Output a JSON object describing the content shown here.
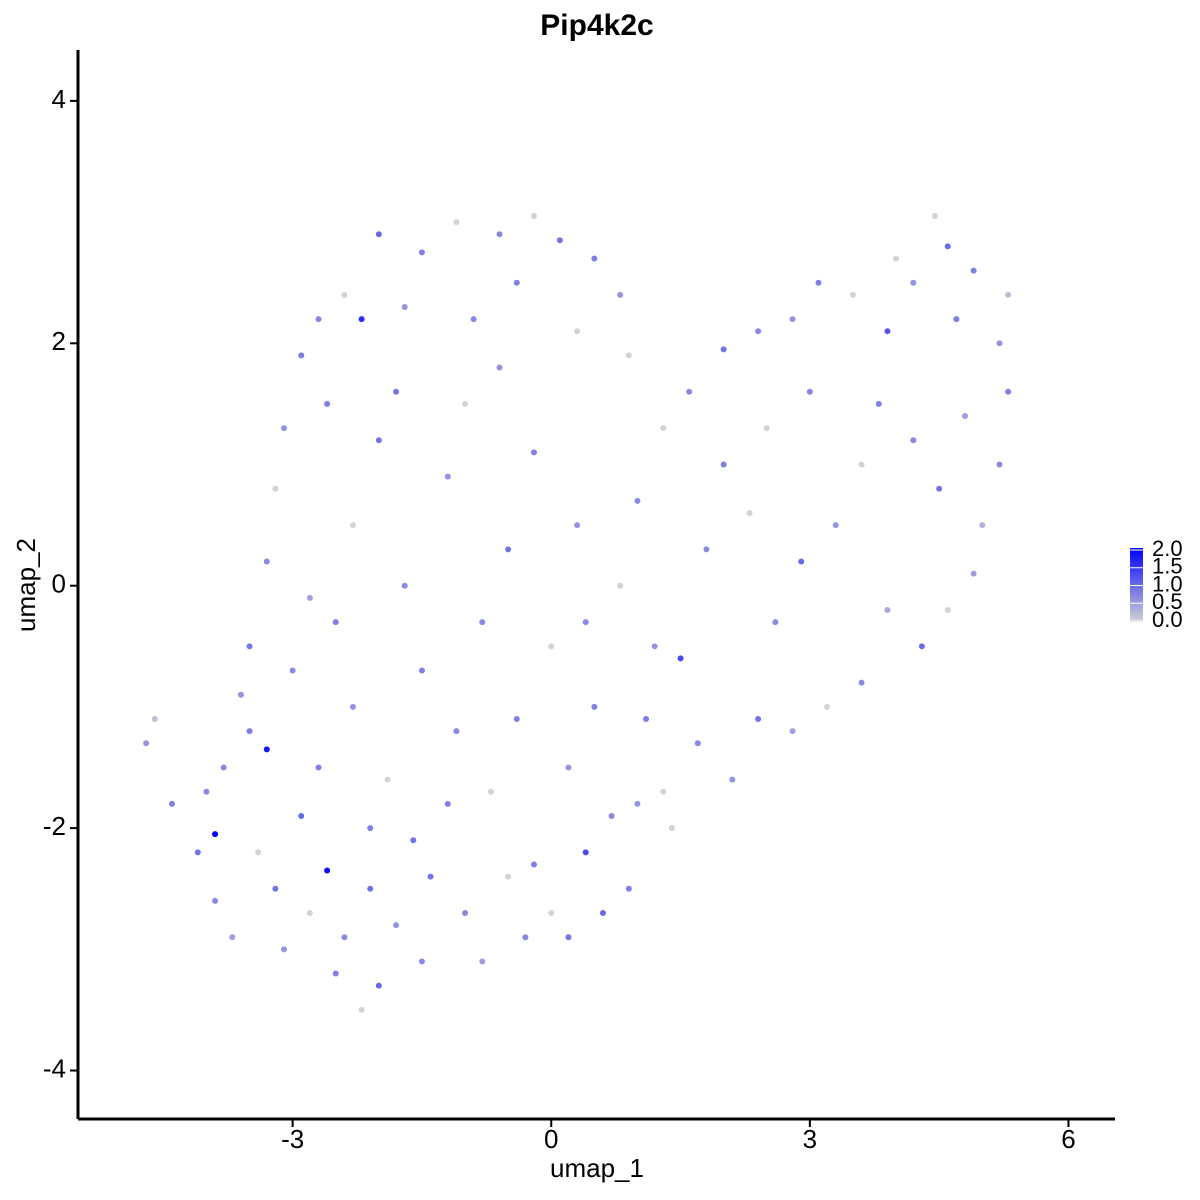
{
  "chart_data": {
    "type": "scatter",
    "title": "Pip4k2c",
    "x_label": "umap_1",
    "y_label": "umap_2",
    "xlim": [
      -5.49,
      6.54
    ],
    "ylim": [
      -4.4,
      4.42
    ],
    "xticks": [
      -3,
      0,
      3,
      6
    ],
    "yticks": [
      -4,
      -2,
      0,
      2,
      4
    ],
    "low_color": "#d3d3d3",
    "high_color": "#0000ff",
    "color_lim": [
      0,
      2
    ],
    "color_ticks": [
      {
        "value": 0,
        "label": "0.0"
      },
      {
        "value": 0.5,
        "label": "0.5"
      },
      {
        "value": 1,
        "label": "1.0"
      },
      {
        "value": 1.5,
        "label": "1.5"
      },
      {
        "value": 2,
        "label": "2.0"
      }
    ],
    "x": [
      -4.7,
      -4.6,
      -4.4,
      -4.1,
      -3.9,
      -3.8,
      -3.7,
      -3.5,
      -3.3,
      -3.2,
      -3.1,
      -2.9,
      -2.8,
      -2.6,
      -2.5,
      -2.4,
      -2.2,
      -2.0,
      -2.1,
      -1.8,
      -1.5,
      -1.4,
      -1.2,
      -1.0,
      -0.8,
      -0.5,
      -0.3,
      0.0,
      0.2,
      0.4,
      0.6,
      0.9,
      1.0,
      1.3,
      1.7,
      2.1,
      2.4,
      2.8,
      3.2,
      3.6,
      3.9,
      4.3,
      4.6,
      4.9,
      5.0,
      5.2,
      5.3,
      5.2,
      5.3,
      4.9,
      4.6,
      4.45,
      4.2,
      3.9,
      3.5,
      3.1,
      2.8,
      2.4,
      2.0,
      1.6,
      1.3,
      0.9,
      0.8,
      0.5,
      0.1,
      -0.2,
      -0.6,
      -1.1,
      -1.5,
      -2.0,
      -2.2,
      -2.4,
      -2.7,
      -2.9,
      -3.1,
      -3.2,
      -3.3,
      -3.5,
      -3.6,
      -3.0,
      -2.5,
      -2.3,
      -2.0,
      -1.7,
      -1.5,
      -1.2,
      -1.0,
      -0.8,
      -0.5,
      -0.2,
      0.0,
      0.3,
      0.5,
      0.8,
      1.0,
      1.2,
      1.5,
      1.8,
      2.0,
      2.3,
      2.6,
      2.9,
      3.3,
      3.6,
      3.8,
      4.2,
      4.5,
      4.8,
      -3.9,
      -3.4,
      -2.7,
      -2.3,
      -1.9,
      -1.6,
      -1.1,
      -0.7,
      -0.4,
      0.2,
      0.7,
      1.1,
      -0.9,
      -0.4,
      0.3,
      -1.7,
      -2.6,
      -1.8,
      -0.6,
      3.0,
      2.5,
      4.0,
      4.7,
      -4.0,
      -2.8,
      -2.1,
      -0.2,
      1.4,
      0.4
    ],
    "y": [
      -1.3,
      -1.1,
      -1.8,
      -2.2,
      -2.05,
      -1.5,
      -2.9,
      -1.2,
      -1.35,
      -2.5,
      -3.0,
      -1.9,
      -2.7,
      -2.35,
      -3.2,
      -2.9,
      -3.5,
      -3.3,
      -2.0,
      -2.8,
      -3.1,
      -2.4,
      -1.8,
      -2.7,
      -3.1,
      -2.4,
      -2.9,
      -2.7,
      -2.9,
      -2.2,
      -2.7,
      -2.5,
      -1.8,
      -1.7,
      -1.3,
      -1.6,
      -1.1,
      -1.2,
      -1.0,
      -0.8,
      -0.2,
      -0.5,
      -0.2,
      0.1,
      0.5,
      1.0,
      1.6,
      2.0,
      2.4,
      2.6,
      2.8,
      3.05,
      2.5,
      2.1,
      2.4,
      2.5,
      2.2,
      2.1,
      1.95,
      1.6,
      1.3,
      1.9,
      2.4,
      2.7,
      2.85,
      3.05,
      2.9,
      3.0,
      2.75,
      2.9,
      2.2,
      2.4,
      2.2,
      1.9,
      1.3,
      0.8,
      0.2,
      -0.5,
      -0.9,
      -0.7,
      -0.3,
      0.5,
      1.2,
      0.0,
      -0.7,
      0.9,
      1.5,
      -0.3,
      0.3,
      1.1,
      -0.5,
      0.5,
      -1.0,
      0.0,
      0.7,
      -0.5,
      -0.6,
      0.3,
      1.0,
      0.6,
      -0.3,
      0.2,
      0.5,
      1.0,
      1.5,
      1.2,
      0.8,
      1.4,
      -2.6,
      -2.2,
      -1.5,
      -1.0,
      -1.6,
      -2.1,
      -1.2,
      -1.7,
      -1.1,
      -1.5,
      -1.9,
      -1.1,
      2.2,
      2.5,
      2.1,
      2.3,
      1.5,
      1.6,
      1.8,
      1.6,
      1.3,
      2.7,
      2.2,
      -1.7,
      -0.1,
      -2.5,
      -2.3,
      -2.0,
      -0.3
    ],
    "values": [
      0.6,
      0.2,
      0.8,
      0.9,
      2.0,
      0.7,
      0.5,
      0.8,
      1.8,
      0.9,
      0.6,
      1.0,
      0.0,
      1.9,
      0.8,
      0.7,
      0.0,
      1.0,
      0.8,
      0.6,
      0.7,
      0.9,
      0.8,
      0.7,
      0.5,
      0.0,
      0.7,
      0.0,
      0.9,
      1.3,
      1.0,
      0.8,
      0.6,
      0.0,
      0.7,
      0.6,
      0.9,
      0.5,
      0.0,
      0.7,
      0.4,
      1.0,
      0.0,
      0.5,
      0.3,
      0.7,
      0.8,
      0.6,
      0.2,
      0.8,
      1.0,
      0.0,
      0.6,
      1.2,
      0.0,
      0.8,
      0.6,
      0.7,
      0.9,
      0.7,
      0.0,
      0.0,
      0.6,
      0.8,
      0.9,
      0.0,
      0.7,
      0.0,
      0.8,
      1.0,
      1.6,
      0.0,
      0.7,
      0.8,
      0.6,
      0.0,
      0.7,
      0.9,
      0.6,
      0.7,
      0.8,
      0.0,
      0.9,
      0.7,
      0.8,
      0.6,
      0.0,
      0.7,
      0.9,
      0.8,
      0.0,
      0.6,
      0.8,
      0.0,
      0.7,
      0.6,
      1.3,
      0.7,
      0.8,
      0.0,
      0.7,
      1.0,
      0.6,
      0.0,
      0.8,
      0.7,
      0.9,
      0.5,
      0.7,
      0.0,
      0.8,
      0.6,
      0.0,
      0.9,
      0.7,
      0.0,
      0.8,
      0.6,
      0.7,
      0.8,
      0.7,
      0.8,
      0.0,
      0.6,
      0.8,
      0.9,
      0.6,
      0.7,
      0.0,
      0.0,
      0.8,
      0.7,
      0.5,
      0.9,
      0.8,
      0.0,
      0.7
    ]
  }
}
